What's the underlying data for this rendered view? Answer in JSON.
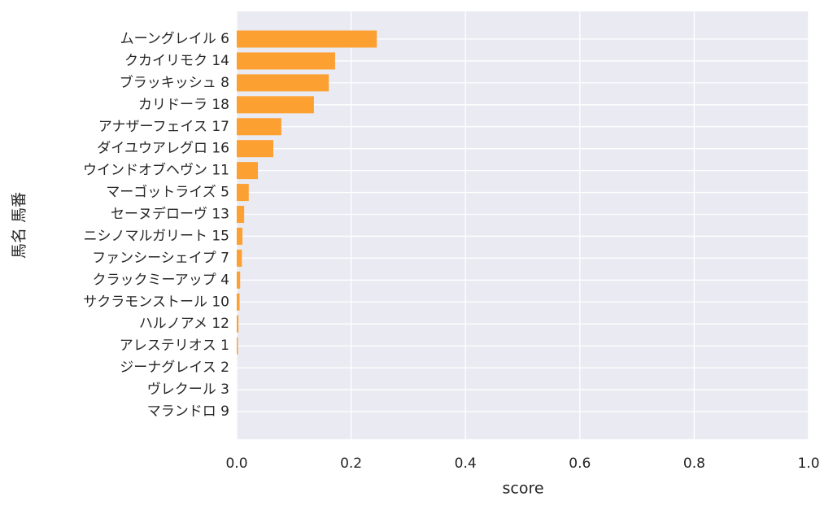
{
  "chart_data": {
    "type": "barh",
    "categories": [
      "ムーングレイル 6",
      "クカイリモク 14",
      "ブラッキッシュ 8",
      "カリドーラ 18",
      "アナザーフェイス 17",
      "ダイユウアレグロ 16",
      "ウインドオブヘヴン 11",
      "マーゴットライズ 5",
      "セーヌデローヴ 13",
      "ニシノマルガリート 15",
      "ファンシーシェイプ 7",
      "クラックミーアップ 4",
      "サクラモンストール 10",
      "ハルノアメ 12",
      "アレステリオス 1",
      "ジーナグレイス 2",
      "ヴレクール 3",
      "マランドロ 9"
    ],
    "values": [
      0.245,
      0.172,
      0.161,
      0.135,
      0.078,
      0.064,
      0.037,
      0.021,
      0.013,
      0.01,
      0.009,
      0.006,
      0.005,
      0.003,
      0.002,
      0,
      0,
      0
    ],
    "color": "#fca032",
    "xlim": [
      0,
      1
    ],
    "xticks": [
      {
        "value": 0,
        "label": "0.0"
      },
      0.2,
      0.4,
      0.6,
      0.8,
      {
        "value": 1,
        "label": "1.0"
      }
    ],
    "xlabel": "score",
    "ylabel": "馬名 馬番",
    "grid": true
  }
}
